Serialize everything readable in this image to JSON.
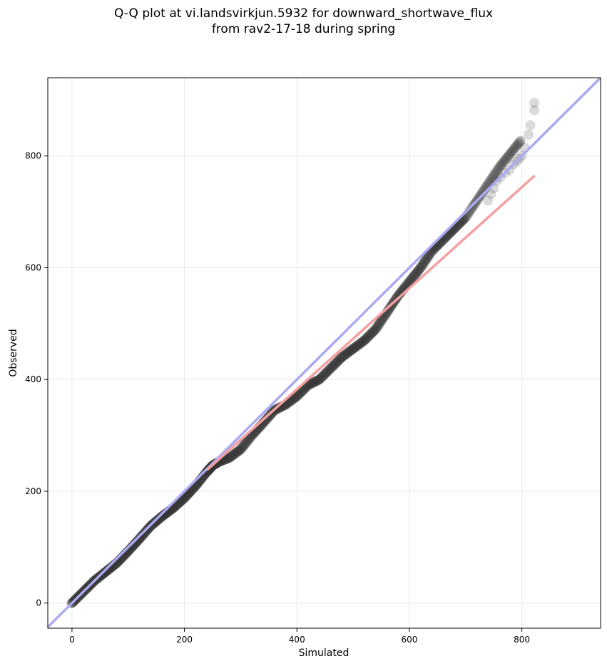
{
  "chart_data": {
    "type": "scatter",
    "title_line1": "Q-Q plot at vi.landsvirkjun.5932 for downward_shortwave_flux",
    "title_line2": "from rav2-17-18 during spring",
    "xlabel": "Simulated",
    "ylabel": "Observed",
    "xlim": [
      -43,
      940
    ],
    "ylim": [
      -45,
      940
    ],
    "xticks": [
      0,
      200,
      400,
      600,
      800
    ],
    "yticks": [
      0,
      200,
      400,
      600,
      800
    ],
    "grid": true,
    "reference_line": {
      "color": "#aaaaf0",
      "x": [
        -43,
        940
      ],
      "y": [
        -43,
        940
      ]
    },
    "fit_line": {
      "color": "#f5a0a0",
      "x": [
        240,
        823
      ],
      "y": [
        238,
        765
      ]
    },
    "quantile_curve": {
      "x": [
        0,
        20,
        40,
        60,
        80,
        100,
        120,
        140,
        160,
        180,
        200,
        220,
        240,
        250,
        260,
        280,
        300,
        320,
        340,
        360,
        380,
        400,
        420,
        440,
        460,
        480,
        500,
        520,
        540,
        560,
        580,
        600,
        620,
        640,
        660,
        680,
        700,
        720,
        740,
        760,
        780,
        800
      ],
      "y": [
        0,
        20,
        40,
        56,
        72,
        93,
        115,
        138,
        155,
        170,
        188,
        210,
        235,
        246,
        252,
        260,
        275,
        300,
        322,
        345,
        355,
        370,
        390,
        400,
        420,
        440,
        455,
        470,
        490,
        520,
        550,
        575,
        600,
        630,
        650,
        670,
        690,
        720,
        750,
        780,
        805,
        830
      ]
    },
    "tail_points": {
      "x": [
        740,
        745,
        750,
        755,
        762,
        770,
        778,
        785,
        790,
        795,
        800,
        805,
        812,
        815,
        822,
        822
      ],
      "y": [
        720,
        732,
        742,
        755,
        762,
        770,
        775,
        785,
        790,
        795,
        800,
        815,
        838,
        855,
        882,
        895
      ]
    },
    "colors": {
      "points": "#333333",
      "reference": "#aaaaf0",
      "fit": "#f5a0a0"
    }
  }
}
